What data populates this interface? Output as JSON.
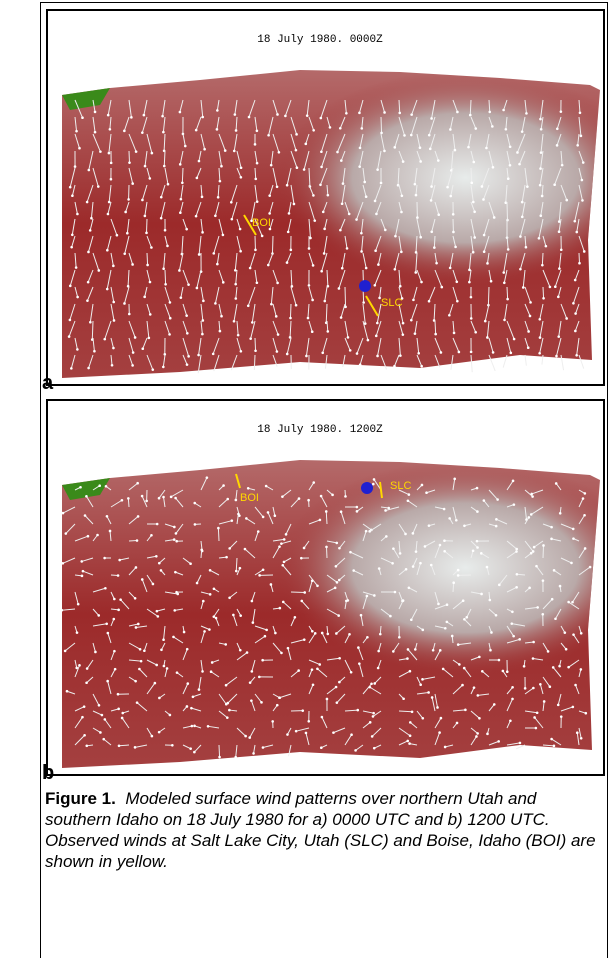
{
  "panels": [
    {
      "label": "a",
      "title": "18 July 1980. 0000Z",
      "stations": [
        "BOI",
        "SLC"
      ]
    },
    {
      "label": "b",
      "title": "18 July 1980. 1200Z",
      "stations": [
        "BOI",
        "SLC"
      ]
    }
  ],
  "caption": {
    "label": "Figure 1.",
    "text": "Modeled surface wind patterns over northern Utah and southern Idaho on 18 July 1980 for a) 0000 UTC and b) 1200 UTC.  Observed winds at Salt Lake City, Utah (SLC) and Boise, Idaho (BOI) are shown in yellow."
  }
}
